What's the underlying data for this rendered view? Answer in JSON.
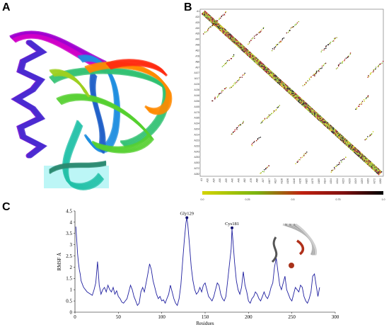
{
  "panels": {
    "a": {
      "letter": "A"
    },
    "b": {
      "letter": "B"
    },
    "c": {
      "letter": "C"
    }
  },
  "protein_structure": {
    "ribbon_colors": [
      "#8b00d8",
      "#5a1fd0",
      "#2e45d6",
      "#1f8fe0",
      "#22c0a8",
      "#30c070",
      "#55d030",
      "#9ed020",
      "#ff8a00",
      "#ff2a10",
      "#c000c0"
    ]
  },
  "contact_map": {
    "residue_labels": [
      "A1",
      "A20",
      "A25",
      "A30",
      "A35",
      "A40",
      "A48",
      "A62",
      "A78",
      "A86",
      "A97",
      "A107",
      "A117",
      "A126",
      "A136",
      "A146",
      "A156",
      "A165",
      "A175",
      "A185",
      "A194",
      "A204",
      "A214",
      "A223",
      "A233",
      "A243",
      "A253",
      "A263",
      "A272",
      "A282"
    ],
    "colorbar": {
      "ticks": [
        "0.0",
        "0.25",
        "0.5",
        "0.75",
        "1.0"
      ],
      "colors": [
        "#c8c800",
        "#70b010",
        "#a01010",
        "#600000",
        "#000000"
      ]
    }
  },
  "chart_data": {
    "type": "line",
    "xlabel": "Residues",
    "ylabel": "RMSF Å",
    "xlim": [
      0,
      300
    ],
    "ylim": [
      0,
      4.5
    ],
    "xticks": [
      0,
      50,
      100,
      150,
      200,
      250,
      300
    ],
    "yticks": [
      0,
      0.5,
      1,
      1.5,
      2,
      2.5,
      3,
      3.5,
      4,
      4.5
    ],
    "line_color": "#2020a0",
    "x": [
      1,
      2,
      3,
      4,
      5,
      6,
      7,
      8,
      9,
      10,
      11,
      12,
      14,
      16,
      18,
      20,
      22,
      24,
      26,
      28,
      30,
      32,
      34,
      36,
      38,
      40,
      42,
      44,
      46,
      48,
      50,
      52,
      54,
      56,
      58,
      60,
      62,
      64,
      66,
      68,
      70,
      72,
      74,
      76,
      78,
      80,
      82,
      84,
      86,
      88,
      90,
      92,
      94,
      96,
      98,
      100,
      102,
      104,
      106,
      108,
      110,
      112,
      114,
      116,
      118,
      120,
      122,
      124,
      126,
      128,
      129,
      130,
      132,
      134,
      136,
      138,
      140,
      142,
      144,
      146,
      148,
      150,
      152,
      154,
      156,
      158,
      160,
      162,
      164,
      166,
      168,
      170,
      172,
      174,
      176,
      178,
      180,
      181,
      182,
      184,
      186,
      188,
      190,
      192,
      194,
      196,
      198,
      200,
      202,
      204,
      206,
      208,
      210,
      212,
      214,
      216,
      218,
      220,
      222,
      224,
      226,
      228,
      230,
      232,
      234,
      236,
      238,
      240,
      242,
      244,
      246,
      248,
      250,
      252,
      254,
      256,
      258,
      260,
      262,
      264,
      266,
      268,
      270,
      272,
      274,
      276,
      278,
      280,
      282
    ],
    "y": [
      3.8,
      3.2,
      2.6,
      2.2,
      1.9,
      1.7,
      1.4,
      1.3,
      1.2,
      1.1,
      1.05,
      1.0,
      0.9,
      0.85,
      0.8,
      0.75,
      1.0,
      1.3,
      2.25,
      1.2,
      0.8,
      1.0,
      1.1,
      0.9,
      1.2,
      1.0,
      0.9,
      1.1,
      0.8,
      0.95,
      0.7,
      0.6,
      0.45,
      0.4,
      0.5,
      0.6,
      0.9,
      1.2,
      1.0,
      0.7,
      0.5,
      0.3,
      0.4,
      0.9,
      1.1,
      0.9,
      1.3,
      1.7,
      2.15,
      1.9,
      1.4,
      1.1,
      0.8,
      0.6,
      0.7,
      0.5,
      0.55,
      0.4,
      0.6,
      0.8,
      1.2,
      0.9,
      0.6,
      0.4,
      0.3,
      0.6,
      1.2,
      2.2,
      3.2,
      4.0,
      4.2,
      3.9,
      3.0,
      2.0,
      1.4,
      1.0,
      0.8,
      0.9,
      1.1,
      0.9,
      1.2,
      1.3,
      1.0,
      0.7,
      0.6,
      0.5,
      0.7,
      1.0,
      1.3,
      1.2,
      0.8,
      0.6,
      0.5,
      0.7,
      1.4,
      2.1,
      2.8,
      3.7,
      3.2,
      2.2,
      1.4,
      1.0,
      0.8,
      1.1,
      1.8,
      1.2,
      0.9,
      0.5,
      0.4,
      0.6,
      0.7,
      0.9,
      0.8,
      0.6,
      0.5,
      0.7,
      0.9,
      0.7,
      0.6,
      0.8,
      1.1,
      1.3,
      2.0,
      2.4,
      1.8,
      1.2,
      1.0,
      1.3,
      1.6,
      1.0,
      0.8,
      0.6,
      0.5,
      0.8,
      1.1,
      1.0,
      0.9,
      1.2,
      1.1,
      0.7,
      0.5,
      0.4,
      0.6,
      0.9,
      1.6,
      1.7,
      1.2,
      0.7,
      1.1
    ],
    "annotations": [
      {
        "label": "Gly129",
        "x": 129,
        "y": 4.2
      },
      {
        "label": "Cys181",
        "x": 181,
        "y": 3.75
      }
    ]
  }
}
